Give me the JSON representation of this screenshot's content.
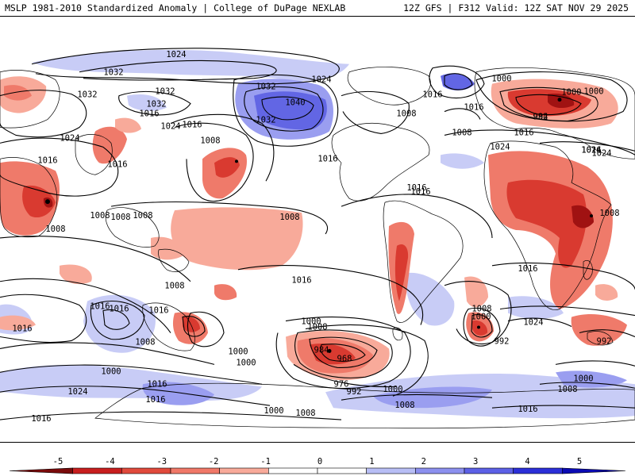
{
  "header": {
    "left": "MSLP 1981-2010 Standardized Anomaly | College of DuPage NEXLAB",
    "right": "12Z GFS | F312 Valid: 12Z SAT NOV 29 2025"
  },
  "isobar_labels": [
    {
      "text": "1024"
    },
    {
      "text": "1032"
    },
    {
      "text": "1032"
    },
    {
      "text": "1032"
    },
    {
      "text": "1032"
    },
    {
      "text": "1032"
    },
    {
      "text": "1040"
    },
    {
      "text": "1032"
    },
    {
      "text": "1024"
    },
    {
      "text": "1016"
    },
    {
      "text": "1024"
    },
    {
      "text": "1016"
    },
    {
      "text": "1024"
    },
    {
      "text": "1016"
    },
    {
      "text": "1008"
    },
    {
      "text": "1016"
    },
    {
      "text": "1008"
    },
    {
      "text": "1008"
    },
    {
      "text": "1016"
    },
    {
      "text": "1008"
    },
    {
      "text": "1008"
    },
    {
      "text": "1016"
    },
    {
      "text": "1008"
    },
    {
      "text": "1016"
    },
    {
      "text": "1016"
    },
    {
      "text": "1008"
    },
    {
      "text": "1000"
    },
    {
      "text": "1000"
    },
    {
      "text": "1024"
    },
    {
      "text": "1016"
    },
    {
      "text": "1008"
    },
    {
      "text": "1016"
    },
    {
      "text": "1016"
    },
    {
      "text": "1000"
    },
    {
      "text": "1008"
    },
    {
      "text": "1000"
    },
    {
      "text": "984"
    },
    {
      "text": "968"
    },
    {
      "text": "976"
    },
    {
      "text": "992"
    },
    {
      "text": "1000"
    },
    {
      "text": "1008"
    },
    {
      "text": "1000"
    },
    {
      "text": "1016"
    },
    {
      "text": "1016"
    },
    {
      "text": "1016"
    },
    {
      "text": "1008"
    },
    {
      "text": "1016"
    },
    {
      "text": "1016"
    },
    {
      "text": "1024"
    },
    {
      "text": "1008"
    },
    {
      "text": "1000"
    },
    {
      "text": "992"
    },
    {
      "text": "1000"
    },
    {
      "text": "1024"
    },
    {
      "text": "992"
    },
    {
      "text": "1008"
    },
    {
      "text": "1000"
    },
    {
      "text": "1024"
    },
    {
      "text": "1016"
    },
    {
      "text": "1008"
    },
    {
      "text": "1008"
    },
    {
      "text": "1000"
    },
    {
      "text": "1016"
    },
    {
      "text": "1016"
    },
    {
      "text": "1008"
    },
    {
      "text": "1016"
    },
    {
      "text": "1024"
    },
    {
      "text": "992"
    },
    {
      "text": "984"
    },
    {
      "text": "1000"
    },
    {
      "text": "1016"
    }
  ],
  "colorbar": {
    "ticks": [
      "-5",
      "-4",
      "-3",
      "-2",
      "-1",
      "0",
      "1",
      "2",
      "3",
      "4",
      "5"
    ],
    "colors": [
      "#7a0a0a",
      "#c81e1e",
      "#e14a3c",
      "#f07868",
      "#f8aa9a",
      "#ffffff",
      "#ffffff",
      "#b8bef5",
      "#8c90ee",
      "#5c60e6",
      "#2b2fd8",
      "#0a0ab4"
    ]
  },
  "fill_colors": {
    "weak_red": "#f8aa9a",
    "mod_red": "#ef7a6a",
    "strong_red": "#d93a30",
    "extreme_red": "#a01212",
    "weak_blue": "#c8ccf6",
    "mod_blue": "#9a9ef0",
    "strong_blue": "#6266e4",
    "extreme_blue": "#2c30d6",
    "coast": "#000000",
    "isobar": "#000000"
  }
}
